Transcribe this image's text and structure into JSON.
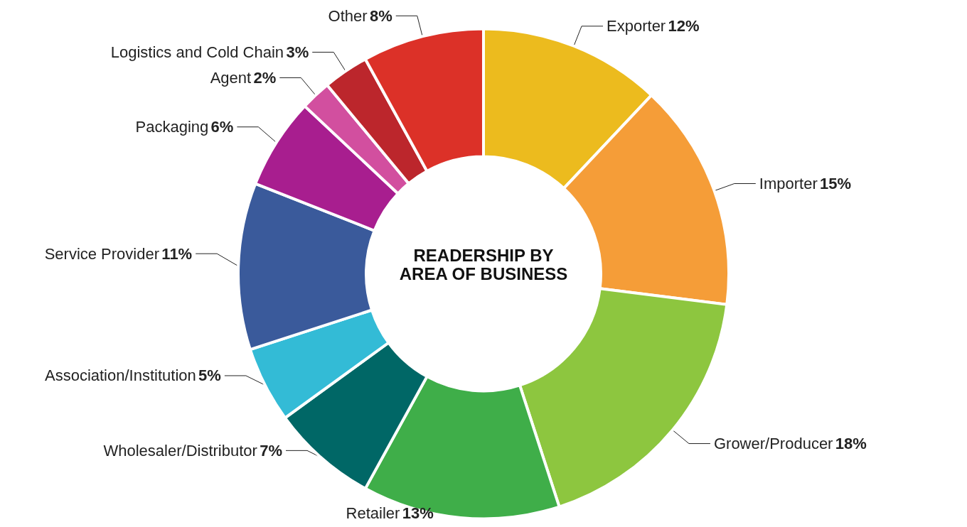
{
  "chart_data": {
    "type": "donut",
    "title": "READERSHIP BY\nAREA OF BUSINESS",
    "categories": [
      "Exporter",
      "Importer",
      "Grower/Producer",
      "Retailer",
      "Wholesaler/Distributor",
      "Association/Institution",
      "Service Provider",
      "Packaging",
      "Agent",
      "Logistics and Cold Chain",
      "Other"
    ],
    "values": [
      12,
      15,
      18,
      13,
      7,
      5,
      11,
      6,
      2,
      3,
      8
    ],
    "value_labels": [
      "12%",
      "15%",
      "18%",
      "13%",
      "7%",
      "5%",
      "11%",
      "6%",
      "2%",
      "3%",
      "8%"
    ],
    "colors": [
      "#ecbb1e",
      "#f59d38",
      "#8dc63f",
      "#3fae49",
      "#006766",
      "#33bbd6",
      "#3a5a9b",
      "#a81e8f",
      "#d24f9f",
      "#bc262c",
      "#dc3128"
    ]
  }
}
